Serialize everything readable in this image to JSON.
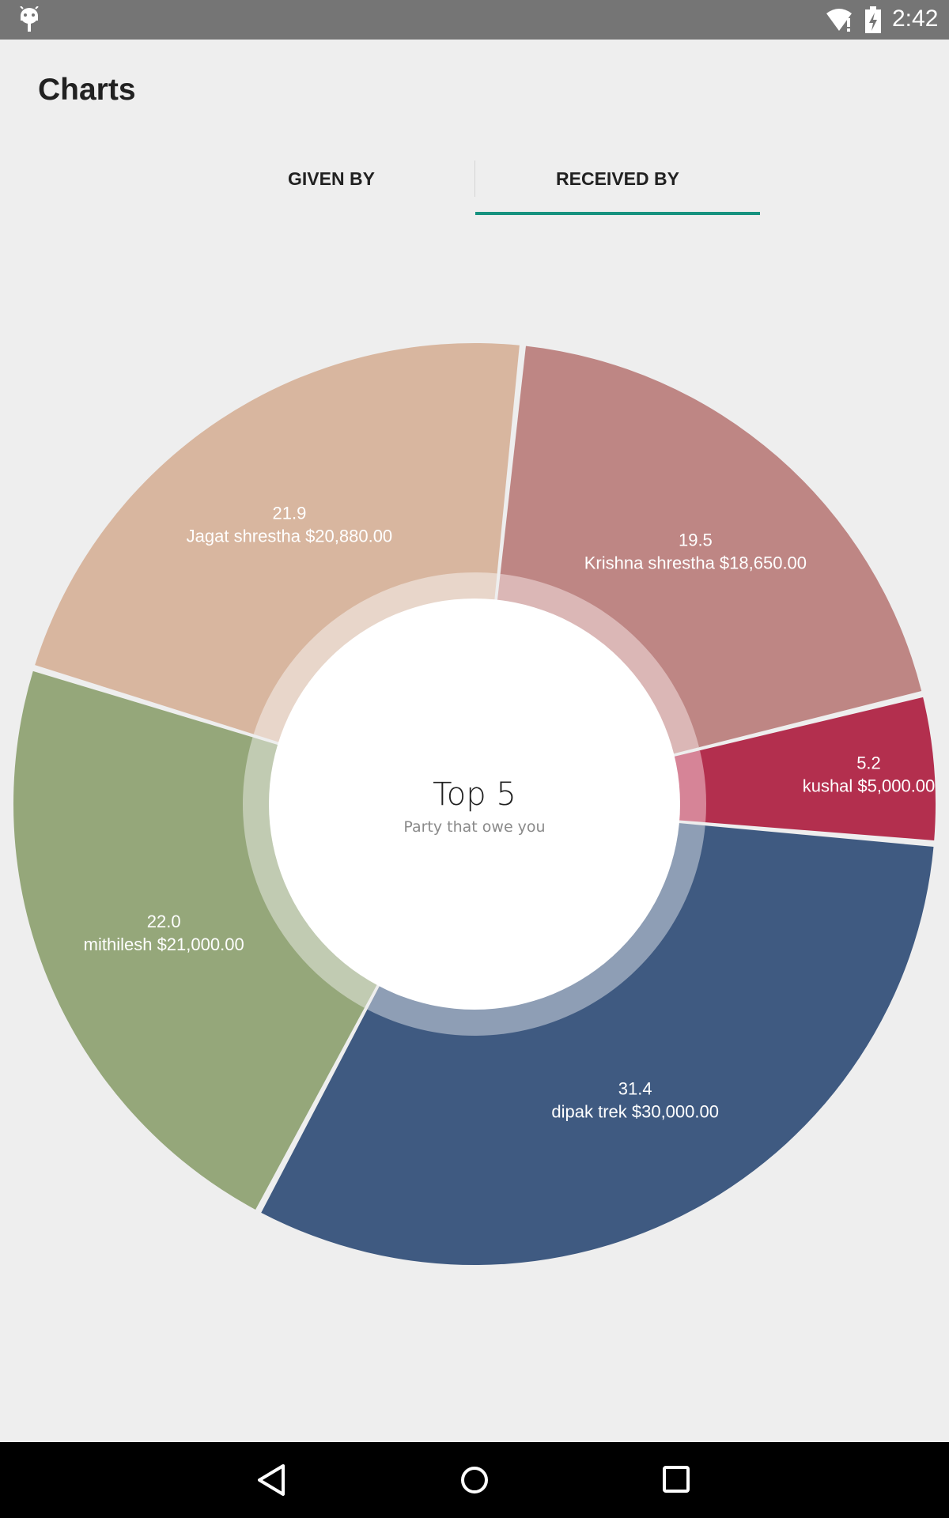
{
  "status_bar": {
    "time": "2:42",
    "icons": [
      "android-icon",
      "wifi-icon",
      "battery-icon"
    ]
  },
  "page": {
    "title": "Charts"
  },
  "tabs": [
    {
      "label": "GIVEN BY",
      "selected": false
    },
    {
      "label": "RECEIVED BY",
      "selected": true
    }
  ],
  "colors": {
    "accent": "#16927f",
    "background": "#eeeeee"
  },
  "chart_data": {
    "type": "pie",
    "center_title": "Top 5",
    "center_subtitle": "Party that owe you",
    "slices": [
      {
        "percent": "19.5",
        "name": "Krishna shrestha",
        "amount": "$18,650.00",
        "value": 19.5,
        "color": "#be8684",
        "inner_color": "#dbb7b6"
      },
      {
        "percent": "5.2",
        "name": "kushal",
        "amount": "$5,000.00",
        "value": 5.2,
        "color": "#b32f4e",
        "inner_color": "#d68497"
      },
      {
        "percent": "31.4",
        "name": "dipak   trek",
        "amount": "$30,000.00",
        "value": 31.4,
        "color": "#3f5a81",
        "inner_color": "#8e9eb5"
      },
      {
        "percent": "22.0",
        "name": "mithilesh",
        "amount": "$21,000.00",
        "value": 22.0,
        "color": "#95a77a",
        "inner_color": "#c1cbb2"
      },
      {
        "percent": "21.9",
        "name": "Jagat shrestha",
        "amount": "$20,880.00",
        "value": 21.9,
        "color": "#d8b69f",
        "inner_color": "#e8d6ca"
      }
    ]
  },
  "nav_bar": {
    "buttons": [
      "back-icon",
      "home-icon",
      "recents-icon"
    ]
  }
}
